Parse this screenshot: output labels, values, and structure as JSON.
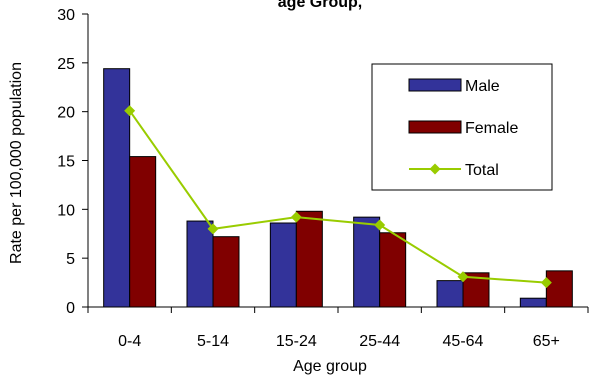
{
  "chart_data": {
    "type": "bar",
    "title": "age Group, ",
    "xlabel": "Age group",
    "ylabel": "Rate per 100,000 population",
    "categories": [
      "0-4",
      "5-14",
      "15-24",
      "25-44",
      "45-64",
      "65+"
    ],
    "ylim": [
      0,
      30
    ],
    "yticks": [
      0,
      5,
      10,
      15,
      20,
      25,
      30
    ],
    "grid": false,
    "legend_position": "top-right",
    "series": [
      {
        "name": "Male",
        "kind": "bar",
        "color": "#33339a",
        "values": [
          24.4,
          8.8,
          8.6,
          9.2,
          2.7,
          0.9
        ]
      },
      {
        "name": "Female",
        "kind": "bar",
        "color": "#800000",
        "values": [
          15.4,
          7.2,
          9.8,
          7.6,
          3.5,
          3.7
        ]
      },
      {
        "name": "Total",
        "kind": "line",
        "color": "#99cc00",
        "values": [
          20.1,
          8.0,
          9.2,
          8.4,
          3.1,
          2.5
        ]
      }
    ]
  }
}
